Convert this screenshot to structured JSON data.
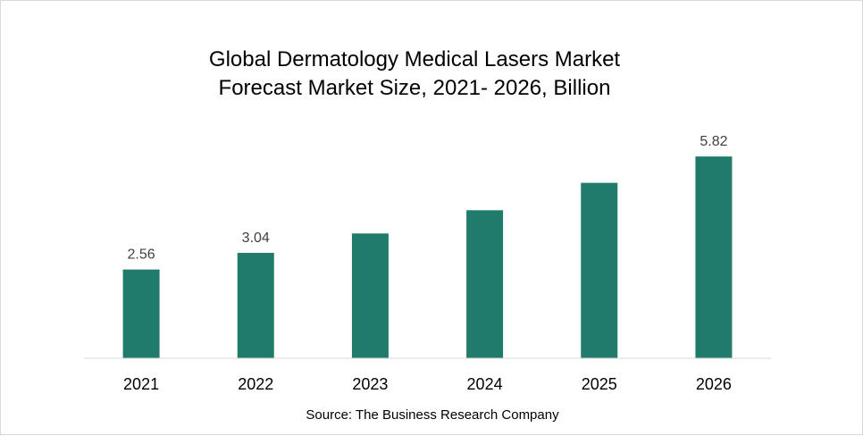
{
  "chart_data": {
    "type": "bar",
    "title": "Global Dermatology Medical Lasers Market",
    "subtitle": "Forecast Market Size, 2021- 2026, Billion",
    "xlabel": "",
    "ylabel": "",
    "categories": [
      "2021",
      "2022",
      "2023",
      "2024",
      "2025",
      "2026"
    ],
    "values": [
      2.56,
      3.04,
      3.6,
      4.27,
      5.06,
      5.82
    ],
    "data_labels": [
      "2.56",
      "3.04",
      "",
      "",
      "",
      "5.82"
    ],
    "ylim": [
      0,
      6.7
    ],
    "grid": false,
    "legend": "none",
    "bar_color": "#217b6b",
    "axis_color": "#d9d9d9",
    "source": "Source: The Business Research Company"
  }
}
